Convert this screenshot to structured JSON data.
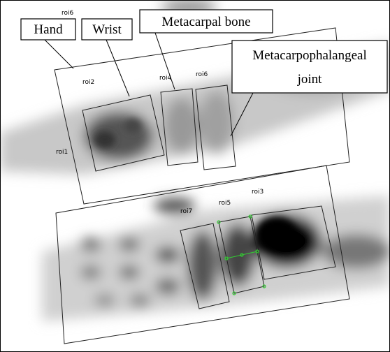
{
  "callouts": [
    "Hand",
    "Wrist",
    "Metacarpal bone",
    {
      "lines": [
        "Metacarpophalangeal",
        "joint"
      ]
    }
  ],
  "roi_labels": [
    "roi6",
    "roi2",
    "roi4",
    "roi6",
    "roi1",
    "roi3",
    "roi5",
    "roi7"
  ]
}
